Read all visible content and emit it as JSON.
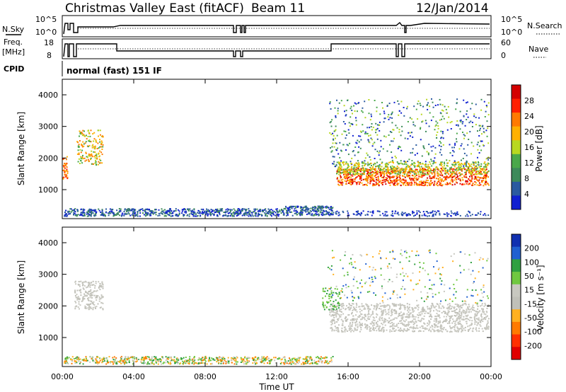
{
  "header": {
    "title": "Christmas Valley East (fitACF)",
    "beam": "Beam 11",
    "date": "12/Jan/2014"
  },
  "top_panels": {
    "nsky_label": "N.Sky",
    "nsky_ticks": [
      "10^5",
      "10^0"
    ],
    "nsearch_label": "N.Search",
    "freq_label_1": "Freq.",
    "freq_label_2": "[MHz]",
    "freq_ticks": [
      "18",
      "8"
    ],
    "nave_ticks": [
      "60",
      "0"
    ],
    "nave_label": "Nave",
    "cpid_label": "CPID",
    "cpid_value": "normal (fast) 151 IF"
  },
  "chart_data": [
    {
      "type": "heatmap",
      "name": "power",
      "ylabel": "Slant Range [km]",
      "yticks": [
        "4000",
        "3000",
        "2000",
        "1000"
      ],
      "colorbar_label": "Power [dB]",
      "colorbar_ticks": [
        "28",
        "24",
        "20",
        "16",
        "12",
        "8",
        "4"
      ],
      "colors": [
        "#d40000",
        "#ff2000",
        "#ff7a00",
        "#ffb000",
        "#b8d820",
        "#4aa84a",
        "#3d8a5a",
        "#2a5aa0",
        "#1020d0"
      ],
      "clim": [
        0,
        32
      ]
    },
    {
      "type": "heatmap",
      "name": "velocity",
      "ylabel": "Slant Range [km]",
      "yticks": [
        "4000",
        "3000",
        "2000",
        "1000"
      ],
      "colorbar_label": "Velocity [m s⁻¹]",
      "colorbar_ticks": [
        "200",
        "100",
        "50",
        "15",
        "-15",
        "-50",
        "-100",
        "-200"
      ],
      "colors": [
        "#1030b0",
        "#2060d0",
        "#30a040",
        "#70c840",
        "#c8c8c0",
        "#c0c0b8",
        "#ffb020",
        "#ff7a00",
        "#ff3000",
        "#e00000"
      ],
      "clim": [
        -200,
        200
      ]
    }
  ],
  "xaxis": {
    "ticks": [
      "00:00",
      "04:00",
      "08:00",
      "12:00",
      "16:00",
      "20:00",
      "00:00"
    ],
    "label": "Time UT"
  }
}
